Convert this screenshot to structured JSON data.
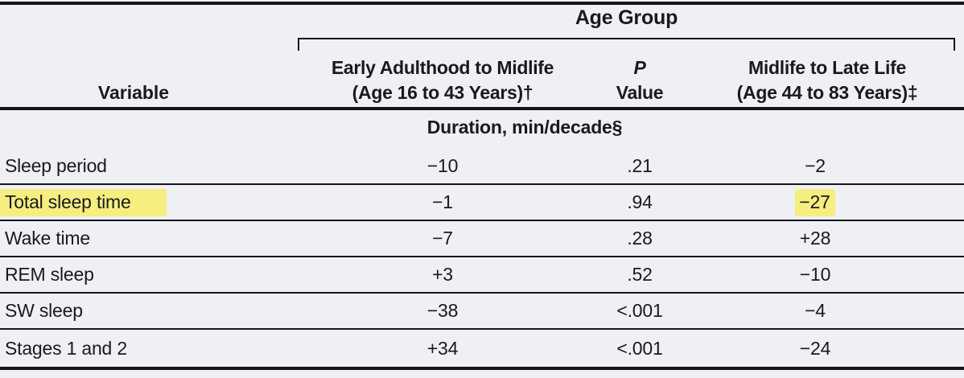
{
  "colors": {
    "background": "#eef0f4",
    "text": "#191922",
    "rule": "#15151c",
    "highlight": "#f6ee7e"
  },
  "table": {
    "spanner_label": "Age Group",
    "variable_header": "Variable",
    "columns": [
      {
        "line1": "Early Adulthood to Midlife",
        "line2": "(Age 16 to 43 Years)†"
      },
      {
        "line1": "P",
        "line2": "Value"
      },
      {
        "line1": "Midlife to Late Life",
        "line2": "(Age 44 to 83 Years)‡"
      }
    ],
    "section_header": "Duration, min/decade§",
    "rows": [
      {
        "variable": "Sleep period",
        "early": "−10",
        "p": ".21",
        "late": "−2",
        "highlight_variable": false,
        "highlight_late": false
      },
      {
        "variable": "Total sleep time",
        "early": "−1",
        "p": ".94",
        "late": "−27",
        "highlight_variable": true,
        "highlight_late": true
      },
      {
        "variable": "Wake time",
        "early": "−7",
        "p": ".28",
        "late": "+28",
        "highlight_variable": false,
        "highlight_late": false
      },
      {
        "variable": "REM sleep",
        "early": "+3",
        "p": ".52",
        "late": "−10",
        "highlight_variable": false,
        "highlight_late": false
      },
      {
        "variable": "SW sleep",
        "early": "−38",
        "p": "<.001",
        "late": "−4",
        "highlight_variable": false,
        "highlight_late": false
      },
      {
        "variable": "Stages 1 and 2",
        "early": "+34",
        "p": "<.001",
        "late": "−24",
        "highlight_variable": false,
        "highlight_late": false
      }
    ]
  }
}
